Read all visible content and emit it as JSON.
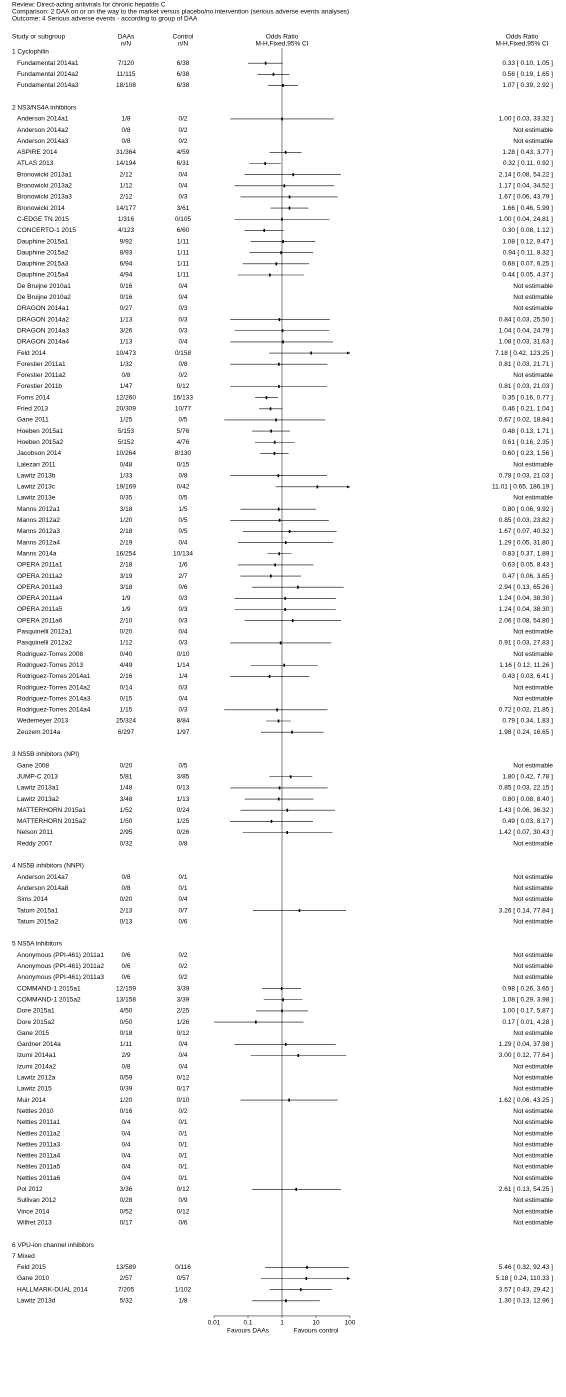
{
  "chart_data": {
    "type": "forest",
    "header": [
      "Review:  Direct-acting antivirals for chronic hepatitis C",
      "Comparison:  2 DAA on or on the way to the market versus placebo/no intervention (serious adverse events analyses)",
      "Outcome:  4 Serious adverse events - according to group of DAA"
    ],
    "columns": {
      "study": "Study or subgroup",
      "daa": "DAAs",
      "daa_sub": "n/N",
      "control": "Control",
      "control_sub": "n/N",
      "plot": "Odds Ratio",
      "plot_sub": "M-H,Fixed,95% CI",
      "effect": "Odds Ratio",
      "effect_sub": "M-H,Fixed,95% CI"
    },
    "xlog": true,
    "xlim": [
      0.01,
      100
    ],
    "xticks": [
      0.01,
      0.1,
      1,
      10,
      100
    ],
    "favours_left": "Favours DAAs",
    "favours_right": "Favours control",
    "groups": [
      {
        "name": "1 Cyclophilin",
        "rows": [
          [
            "Fundamental 2014a1",
            "7/120",
            "6/38",
            "0.33 [ 0.10, 1.05 ]",
            0.33,
            0.1,
            1.05
          ],
          [
            "Fundamental 2014a2",
            "11/115",
            "6/38",
            "0.56 [ 0.19, 1.65 ]",
            0.56,
            0.19,
            1.65
          ],
          [
            "Fundamental 2014a3",
            "18/108",
            "6/38",
            "1.07 [ 0.39, 2.92 ]",
            1.07,
            0.39,
            2.92
          ]
        ]
      },
      {
        "name": "2 NS3/NS4A inhibitors",
        "rows": [
          [
            "Anderson 2014a1",
            "1/8",
            "0/2",
            "1.00 [ 0.03, 33.32 ]",
            1.0,
            0.03,
            33.32
          ],
          [
            "Anderson 2014a2",
            "0/8",
            "0/2",
            "Not estimable"
          ],
          [
            "Anderson 2014a3",
            "0/8",
            "0/2",
            "Not estimable"
          ],
          [
            "ASPIRE 2014",
            "31/364",
            "4/59",
            "1.28 [ 0.43, 3.77 ]",
            1.28,
            0.43,
            3.77
          ],
          [
            "ATLAS 2013",
            "14/194",
            "6/31",
            "0.32 [ 0.11, 0.92 ]",
            0.32,
            0.11,
            0.92
          ],
          [
            "Bronowicki 2013a1",
            "2/12",
            "0/4",
            "2.14 [ 0.08, 54.22 ]",
            2.14,
            0.08,
            54.22
          ],
          [
            "Bronowicki 2013a2",
            "1/12",
            "0/4",
            "1.17 [ 0.04, 34.52 ]",
            1.17,
            0.04,
            34.52
          ],
          [
            "Bronowicki 2013a3",
            "2/12",
            "0/3",
            "1.67 [ 0.06, 43.79 ]",
            1.67,
            0.06,
            43.79
          ],
          [
            "Bronowicki 2014",
            "14/177",
            "3/61",
            "1.66 [ 0.46, 5.99 ]",
            1.66,
            0.46,
            5.99
          ],
          [
            "C-EDGE TN 2015",
            "1/316",
            "0/105",
            "1.00 [ 0.04, 24.81 ]",
            1.0,
            0.04,
            24.81
          ],
          [
            "CONCERTO-1 2015",
            "4/123",
            "6/60",
            "0.30 [ 0.08, 1.12 ]",
            0.3,
            0.08,
            1.12
          ],
          [
            "Dauphine 2015a1",
            "9/92",
            "1/11",
            "1.08 [ 0.12, 9.47 ]",
            1.08,
            0.12,
            9.47
          ],
          [
            "Dauphine 2015a2",
            "8/93",
            "1/11",
            "0.94 [ 0.11, 8.32 ]",
            0.94,
            0.11,
            8.32
          ],
          [
            "Dauphine 2015a3",
            "6/94",
            "1/11",
            "0.68 [ 0.07, 6.25 ]",
            0.68,
            0.07,
            6.25
          ],
          [
            "Dauphine 2015a4",
            "4/94",
            "1/11",
            "0.44 [ 0.05, 4.37 ]",
            0.44,
            0.05,
            4.37
          ],
          [
            "De Bruijne 2010a1",
            "0/16",
            "0/4",
            "Not estimable"
          ],
          [
            "De Bruijne 2010a2",
            "0/16",
            "0/4",
            "Not estimable"
          ],
          [
            "DRAGON 2014a1",
            "0/27",
            "0/3",
            "Not estimable"
          ],
          [
            "DRAGON 2014a2",
            "1/13",
            "0/3",
            "0.84 [ 0.03, 25.50 ]",
            0.84,
            0.03,
            25.5
          ],
          [
            "DRAGON 2014a3",
            "3/26",
            "0/3",
            "1.04 [ 0.04, 24.79 ]",
            1.04,
            0.04,
            24.79
          ],
          [
            "DRAGON 2014a4",
            "1/13",
            "0/4",
            "1.08 [ 0.03, 31.63 ]",
            1.08,
            0.03,
            31.63
          ],
          [
            "Feld 2014",
            "10/473",
            "0/158",
            "7.18 [ 0.42, 123.25 ]",
            7.18,
            0.42,
            123.25
          ],
          [
            "Forestier 2011a1",
            "1/32",
            "0/8",
            "0.81 [ 0.03, 21.71 ]",
            0.81,
            0.03,
            21.71
          ],
          [
            "Forestier 2011a2",
            "0/8",
            "0/2",
            "Not estimable"
          ],
          [
            "Forestier 2011b",
            "1/47",
            "0/12",
            "0.81 [ 0.03, 21.03 ]",
            0.81,
            0.03,
            21.03
          ],
          [
            "Forns 2014",
            "12/260",
            "16/133",
            "0.35 [ 0.16, 0.77 ]",
            0.35,
            0.16,
            0.77
          ],
          [
            "Fried 2013",
            "20/309",
            "10/77",
            "0.46 [ 0.21, 1.04 ]",
            0.46,
            0.21,
            1.04
          ],
          [
            "Gane 2011",
            "1/25",
            "0/5",
            "0.67 [ 0.02, 18.84 ]",
            0.67,
            0.02,
            18.84
          ],
          [
            "Hoeben 2015a1",
            "5/153",
            "5/76",
            "0.48 [ 0.13, 1.71 ]",
            0.48,
            0.13,
            1.71
          ],
          [
            "Hoeben 2015a2",
            "5/152",
            "4/76",
            "0.61 [ 0.16, 2.35 ]",
            0.61,
            0.16,
            2.35
          ],
          [
            "Jacobson 2014",
            "10/264",
            "8/130",
            "0.60 [ 0.23, 1.56 ]",
            0.6,
            0.23,
            1.56
          ],
          [
            "Lalezari 2011",
            "0/48",
            "0/15",
            "Not estimable"
          ],
          [
            "Lawitz 2013b",
            "1/33",
            "0/8",
            "0.78 [ 0.03, 21.03 ]",
            0.78,
            0.03,
            21.03
          ],
          [
            "Lawitz 2013c",
            "19/169",
            "0/42",
            "11.01 [ 0.65, 186.19 ]",
            11.01,
            0.65,
            186.19
          ],
          [
            "Lawitz 2013e",
            "0/35",
            "0/5",
            "Not estimable"
          ],
          [
            "Manns 2012a1",
            "3/18",
            "1/5",
            "0.80 [ 0.06, 9.92 ]",
            0.8,
            0.06,
            9.92
          ],
          [
            "Manns 2012a2",
            "1/20",
            "0/5",
            "0.85 [ 0.03, 23.82 ]",
            0.85,
            0.03,
            23.82
          ],
          [
            "Manns 2012a3",
            "2/18",
            "0/5",
            "1.67 [ 0.07, 40.32 ]",
            1.67,
            0.07,
            40.32
          ],
          [
            "Manns 2012a4",
            "2/19",
            "0/4",
            "1.29 [ 0.05, 31.80 ]",
            1.29,
            0.05,
            31.8
          ],
          [
            "Manns 2014a",
            "16/254",
            "10/134",
            "0.83 [ 0.37, 1.89 ]",
            0.83,
            0.37,
            1.89
          ],
          [
            "OPERA 2011a1",
            "2/18",
            "1/6",
            "0.63 [ 0.05, 8.43 ]",
            0.63,
            0.05,
            8.43
          ],
          [
            "OPERA 2011a2",
            "3/19",
            "2/7",
            "0.47 [ 0.06, 3.65 ]",
            0.47,
            0.06,
            3.65
          ],
          [
            "OPERA 2011a3",
            "3/18",
            "0/6",
            "2.94 [ 0.13, 65.26 ]",
            2.94,
            0.13,
            65.26
          ],
          [
            "OPERA 2011a4",
            "1/9",
            "0/3",
            "1.24 [ 0.04, 38.30 ]",
            1.24,
            0.04,
            38.3
          ],
          [
            "OPERA 2011a5",
            "1/9",
            "0/3",
            "1.24 [ 0.04, 38.30 ]",
            1.24,
            0.04,
            38.3
          ],
          [
            "OPERA 2011a6",
            "2/10",
            "0/3",
            "2.06 [ 0.08, 54.80 ]",
            2.06,
            0.08,
            54.8
          ],
          [
            "Pasquinelli 2012a1",
            "0/20",
            "0/4",
            "Not estimable"
          ],
          [
            "Pasquinelli 2012a2",
            "1/12",
            "0/3",
            "0.91 [ 0.03, 27.83 ]",
            0.91,
            0.03,
            27.83
          ],
          [
            "Rodriguez-Torres 2008",
            "0/40",
            "0/10",
            "Not estimable"
          ],
          [
            "Rodriguez-Torres 2013",
            "4/49",
            "1/14",
            "1.16 [ 0.12, 11.26 ]",
            1.16,
            0.12,
            11.26
          ],
          [
            "Rodriguez-Torres 2014a1",
            "2/16",
            "1/4",
            "0.43 [ 0.03, 6.41 ]",
            0.43,
            0.03,
            6.41
          ],
          [
            "Rodriguez-Torres 2014a2",
            "0/14",
            "0/3",
            "Not estimable"
          ],
          [
            "Rodriguez-Torres 2014a3",
            "0/15",
            "0/4",
            "Not estimable"
          ],
          [
            "Rodriguez-Torres 2014a4",
            "1/15",
            "0/3",
            "0.72 [ 0.02, 21.85 ]",
            0.72,
            0.02,
            21.85
          ],
          [
            "Wedemeyer 2013",
            "25/324",
            "8/84",
            "0.79 [ 0.34, 1.83 ]",
            0.79,
            0.34,
            1.83
          ],
          [
            "Zeuzem 2014a",
            "6/297",
            "1/97",
            "1.98 [ 0.24, 16.65 ]",
            1.98,
            0.24,
            16.65
          ]
        ]
      },
      {
        "name": "3 NS5B inhibitors (NPI)",
        "rows": [
          [
            "Gane 2008",
            "0/20",
            "0/5",
            "Not estimable"
          ],
          [
            "JUMP-C 2013",
            "5/81",
            "3/85",
            "1.80 [ 0.42, 7.78 ]",
            1.8,
            0.42,
            7.78
          ],
          [
            "Lawitz 2013a1",
            "1/48",
            "0/13",
            "0.85 [ 0.03, 22.15 ]",
            0.85,
            0.03,
            22.15
          ],
          [
            "Lawitz 2013a2",
            "3/48",
            "1/13",
            "0.80 [ 0.08, 8.40 ]",
            0.8,
            0.08,
            8.4
          ],
          [
            "MATTERHORN 2015a1",
            "1/52",
            "0/24",
            "1.43 [ 0.06, 36.32 ]",
            1.43,
            0.06,
            36.32
          ],
          [
            "MATTERHORN 2015a2",
            "1/50",
            "1/25",
            "0.49 [ 0.03, 8.17 ]",
            0.49,
            0.03,
            8.17
          ],
          [
            "Nelson 2011",
            "2/95",
            "0/26",
            "1.42 [ 0.07, 30.43 ]",
            1.42,
            0.07,
            30.43
          ],
          [
            "Reddy 2007",
            "0/32",
            "0/8",
            "Not estimable"
          ]
        ]
      },
      {
        "name": "4 NS5B inhibitors (NNPI)",
        "rows": [
          [
            "Anderson 2014a7",
            "0/8",
            "0/1",
            "Not estimable"
          ],
          [
            "Anderson 2014a8",
            "0/8",
            "0/1",
            "Not estimable"
          ],
          [
            "Sims 2014",
            "0/20",
            "0/4",
            "Not estimable"
          ],
          [
            "Tatum 2015a1",
            "2/13",
            "0/7",
            "3.26 [ 0.14, 77.84 ]",
            3.26,
            0.14,
            77.84
          ],
          [
            "Tatum 2015a2",
            "0/13",
            "0/6",
            "Not estimable"
          ]
        ]
      },
      {
        "name": "5 NS5A inhibitors",
        "rows": [
          [
            "Anonymous (PPI-461) 2011a1",
            "0/6",
            "0/2",
            "Not estimable"
          ],
          [
            "Anonymous (PPI-461) 2011a2",
            "0/6",
            "0/2",
            "Not estimable"
          ],
          [
            "Anonymous (PPI-461) 2011a3",
            "0/6",
            "0/2",
            "Not estimable"
          ],
          [
            "COMMAND-1 2015a1",
            "12/159",
            "3/39",
            "0.98 [ 0.26, 3.65 ]",
            0.98,
            0.26,
            3.65
          ],
          [
            "COMMAND-1 2015a2",
            "13/158",
            "3/39",
            "1.08 [ 0.29, 3.98 ]",
            1.08,
            0.29,
            3.98
          ],
          [
            "Dore 2015a1",
            "4/50",
            "2/25",
            "1.00 [ 0.17, 5.87 ]",
            1.0,
            0.17,
            5.87
          ],
          [
            "Dore 2015a2",
            "0/50",
            "1/26",
            "0.17 [ 0.01, 4.28 ]",
            0.17,
            0.01,
            4.28
          ],
          [
            "Gane 2015",
            "0/18",
            "0/12",
            "Not estimable"
          ],
          [
            "Gardner 2014a",
            "1/11",
            "0/4",
            "1.29 [ 0.04, 37.98 ]",
            1.29,
            0.04,
            37.98
          ],
          [
            "Izumi 2014a1",
            "2/9",
            "0/4",
            "3.00 [ 0.12, 77.64 ]",
            3.0,
            0.12,
            77.64
          ],
          [
            "Izumi 2014a2",
            "0/8",
            "0/4",
            "Not estimable"
          ],
          [
            "Lawitz 2012a",
            "0/59",
            "0/12",
            "Not estimable"
          ],
          [
            "Lawitz 2015",
            "0/39",
            "0/17",
            "Not estimable"
          ],
          [
            "Muir 2014",
            "1/20",
            "0/10",
            "1.62 [ 0.06, 43.25 ]",
            1.62,
            0.06,
            43.25
          ],
          [
            "Nettles 2010",
            "0/16",
            "0/2",
            "Not estimable"
          ],
          [
            "Nettles 2011a1",
            "0/4",
            "0/1",
            "Not estimable"
          ],
          [
            "Nettles 2011a2",
            "0/4",
            "0/1",
            "Not estimable"
          ],
          [
            "Nettles 2011a3",
            "0/4",
            "0/1",
            "Not estimable"
          ],
          [
            "Nettles 2011a4",
            "0/4",
            "0/1",
            "Not estimable"
          ],
          [
            "Nettles 2011a5",
            "0/4",
            "0/1",
            "Not estimable"
          ],
          [
            "Nettles 2011a6",
            "0/4",
            "0/1",
            "Not estimable"
          ],
          [
            "Pol 2012",
            "3/36",
            "0/12",
            "2.61 [ 0.13, 54.25 ]",
            2.61,
            0.13,
            54.25
          ],
          [
            "Sullivan 2012",
            "0/28",
            "0/9",
            "Not estimable"
          ],
          [
            "Vince 2014",
            "0/52",
            "0/12",
            "Not estimable"
          ],
          [
            "Wilfret 2013",
            "0/17",
            "0/6",
            "Not estimable"
          ]
        ]
      },
      {
        "name": "6 VPU-ion channel inhibitors",
        "rows": []
      },
      {
        "name": "7 Mixed",
        "rows": [
          [
            "Feld 2015",
            "13/589",
            "0/116",
            "5.46 [ 0.32, 92.43 ]",
            5.46,
            0.32,
            92.43
          ],
          [
            "Gane 2010",
            "2/57",
            "0/57",
            "5.18 [ 0.24, 110.33 ]",
            5.18,
            0.24,
            110.33
          ],
          [
            "HALLMARK-DUAL 2014",
            "7/205",
            "1/102",
            "3.57 [ 0.43, 29.42 ]",
            3.57,
            0.43,
            29.42
          ],
          [
            "Lawitz 2013d",
            "5/32",
            "1/8",
            "1.30 [ 0.13, 12.96 ]",
            1.3,
            0.13,
            12.96
          ]
        ]
      }
    ]
  }
}
